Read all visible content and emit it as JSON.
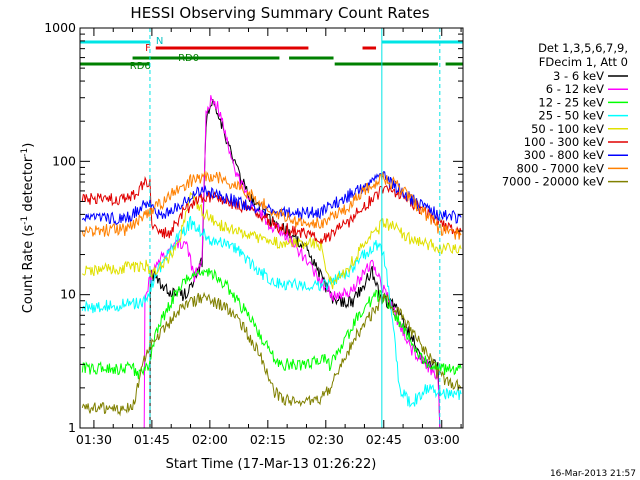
{
  "chart_data": {
    "type": "line",
    "title": "HESSI Observing Summary Count Rates",
    "xlabel": "Start Time (17-Mar-13 01:26:22)",
    "ylabel": "Count Rate (s^-1 detector^-1)",
    "ylabel_main": "Count Rate (s",
    "ylabel_sup1": "-1",
    "ylabel_mid": " detector",
    "ylabel_sup2": "-1",
    "ylabel_end": ")",
    "y_scale": "log",
    "ylim": [
      1,
      1000
    ],
    "xlim_min": [
      86.4,
      185.5
    ],
    "x_ticks": [
      {
        "t": 90,
        "label": "01:30"
      },
      {
        "t": 105,
        "label": "01:45"
      },
      {
        "t": 120,
        "label": "02:00"
      },
      {
        "t": 135,
        "label": "02:15"
      },
      {
        "t": 150,
        "label": "02:30"
      },
      {
        "t": 165,
        "label": "02:45"
      },
      {
        "t": 180,
        "label": "03:00"
      }
    ],
    "y_ticks": [
      {
        "v": 1,
        "label": "1"
      },
      {
        "v": 10,
        "label": "10"
      },
      {
        "v": 100,
        "label": "100"
      },
      {
        "v": 1000,
        "label": "1000"
      }
    ],
    "legend_header": [
      "Det 1,3,5,6,7,9,",
      "FDecim 1, Att 0"
    ],
    "legend_placement": "right",
    "timestamp": "16-Mar-2013 21:57",
    "flag_labels": {
      "N": "N",
      "F": "F",
      "RD0": "RD0",
      "RD6": "RD6"
    },
    "flags": [
      {
        "key": "N",
        "color": "#00e5e5",
        "segments": [
          [
            86.4,
            104.5
          ],
          [
            164.5,
            185.5
          ]
        ]
      },
      {
        "key": "F",
        "color": "#e00000",
        "segments": [
          [
            106,
            145.5
          ],
          [
            159.5,
            163
          ]
        ]
      },
      {
        "key": "RD0",
        "color": "#008000",
        "segments": [
          [
            100,
            138
          ],
          [
            140.5,
            152
          ]
        ]
      },
      {
        "key": "RD6",
        "color": "#008000",
        "segments": [
          [
            86.4,
            104.5
          ],
          [
            152.3,
            179
          ],
          [
            181,
            185.5
          ]
        ]
      }
    ],
    "markers": [
      {
        "t": 104.5,
        "style": "dashed"
      },
      {
        "t": 164.5,
        "style": "solid"
      },
      {
        "t": 179.5,
        "style": "dashed"
      }
    ],
    "series": [
      {
        "name": "3 - 6 keV",
        "color": "#000000",
        "points": [
          [
            87,
            1.0
          ],
          [
            104.5,
            1.0
          ],
          [
            104.6,
            15
          ],
          [
            108,
            11
          ],
          [
            113,
            10
          ],
          [
            116,
            12
          ],
          [
            118,
            18
          ],
          [
            119,
            200
          ],
          [
            120.5,
            280
          ],
          [
            122,
            250
          ],
          [
            124,
            150
          ],
          [
            127,
            90
          ],
          [
            130,
            55
          ],
          [
            135,
            38
          ],
          [
            140,
            30
          ],
          [
            145,
            22
          ],
          [
            148,
            15
          ],
          [
            152,
            9
          ],
          [
            157,
            9
          ],
          [
            162,
            15
          ],
          [
            164,
            10
          ],
          [
            168,
            8
          ],
          [
            172,
            5
          ],
          [
            176,
            3
          ],
          [
            179,
            3
          ],
          [
            179.5,
            1.0
          ],
          [
            185,
            1.0
          ]
        ]
      },
      {
        "name": "6 - 12 keV",
        "color": "#ff00ff",
        "points": [
          [
            87,
            1.0
          ],
          [
            103,
            1.0
          ],
          [
            103.2,
            10
          ],
          [
            105,
            14
          ],
          [
            108,
            20
          ],
          [
            112,
            25
          ],
          [
            114,
            24
          ],
          [
            116,
            13
          ],
          [
            118,
            20
          ],
          [
            119,
            220
          ],
          [
            120.5,
            320
          ],
          [
            122,
            260
          ],
          [
            124,
            160
          ],
          [
            127,
            80
          ],
          [
            130,
            52
          ],
          [
            135,
            35
          ],
          [
            140,
            28
          ],
          [
            145,
            18
          ],
          [
            148,
            13
          ],
          [
            152,
            10
          ],
          [
            157,
            11
          ],
          [
            162,
            18
          ],
          [
            164,
            13
          ],
          [
            168,
            7
          ],
          [
            172,
            4
          ],
          [
            176,
            3
          ],
          [
            179,
            2.5
          ],
          [
            179.5,
            1.0
          ],
          [
            185,
            1.0
          ]
        ]
      },
      {
        "name": "12 - 25 keV",
        "color": "#00ff00",
        "points": [
          [
            87,
            2.8
          ],
          [
            100,
            2.8
          ],
          [
            102,
            2.5
          ],
          [
            104,
            3
          ],
          [
            106,
            5
          ],
          [
            109,
            8
          ],
          [
            112,
            11
          ],
          [
            115,
            14
          ],
          [
            118,
            15
          ],
          [
            121,
            14
          ],
          [
            124,
            12
          ],
          [
            127,
            9
          ],
          [
            130,
            7
          ],
          [
            133,
            5
          ],
          [
            136,
            3.5
          ],
          [
            139,
            3
          ],
          [
            142,
            3
          ],
          [
            146,
            3
          ],
          [
            149,
            3.5
          ],
          [
            151,
            3
          ],
          [
            154,
            4
          ],
          [
            157,
            6
          ],
          [
            160,
            8
          ],
          [
            163,
            10
          ],
          [
            165,
            9.5
          ],
          [
            168,
            7
          ],
          [
            171,
            5
          ],
          [
            174,
            3.5
          ],
          [
            177,
            3
          ],
          [
            179,
            2.8
          ],
          [
            185,
            2.8
          ]
        ]
      },
      {
        "name": "25 - 50 keV",
        "color": "#00ffff",
        "points": [
          [
            87,
            8
          ],
          [
            100,
            8.5
          ],
          [
            103,
            9
          ],
          [
            105,
            12
          ],
          [
            108,
            18
          ],
          [
            112,
            28
          ],
          [
            115,
            35
          ],
          [
            118,
            30
          ],
          [
            121,
            25
          ],
          [
            124,
            25
          ],
          [
            127,
            22
          ],
          [
            130,
            18
          ],
          [
            133,
            15
          ],
          [
            136,
            13
          ],
          [
            139,
            12
          ],
          [
            142,
            12
          ],
          [
            146,
            12
          ],
          [
            149,
            12
          ],
          [
            151,
            12
          ],
          [
            154,
            14
          ],
          [
            157,
            16
          ],
          [
            160,
            20
          ],
          [
            163,
            24
          ],
          [
            165,
            20
          ],
          [
            167,
            8
          ],
          [
            169,
            2
          ],
          [
            172,
            1.5
          ],
          [
            176,
            2
          ],
          [
            179,
            1.8
          ],
          [
            185,
            1.8
          ]
        ]
      },
      {
        "name": "50 - 100 keV",
        "color": "#e0e000",
        "points": [
          [
            87,
            15
          ],
          [
            100,
            16
          ],
          [
            103,
            17
          ],
          [
            105,
            15
          ],
          [
            108,
            17
          ],
          [
            112,
            25
          ],
          [
            115,
            55
          ],
          [
            117,
            45
          ],
          [
            119,
            40
          ],
          [
            121,
            35
          ],
          [
            124,
            32
          ],
          [
            127,
            30
          ],
          [
            130,
            28
          ],
          [
            133,
            26
          ],
          [
            136,
            25
          ],
          [
            139,
            25
          ],
          [
            143,
            24
          ],
          [
            146,
            24
          ],
          [
            149,
            24
          ],
          [
            150,
            14
          ],
          [
            152,
            12
          ],
          [
            154,
            14
          ],
          [
            157,
            18
          ],
          [
            160,
            24
          ],
          [
            163,
            30
          ],
          [
            165,
            35
          ],
          [
            168,
            32
          ],
          [
            171,
            27
          ],
          [
            174,
            25
          ],
          [
            177,
            24
          ],
          [
            179,
            22
          ],
          [
            185,
            22
          ]
        ]
      },
      {
        "name": "100 - 300 keV",
        "color": "#e00000",
        "points": [
          [
            87,
            52
          ],
          [
            99,
            52
          ],
          [
            101,
            58
          ],
          [
            103,
            70
          ],
          [
            104.5,
            72
          ],
          [
            105,
            35
          ],
          [
            107,
            28
          ],
          [
            110,
            30
          ],
          [
            113,
            42
          ],
          [
            116,
            50
          ],
          [
            118,
            55
          ],
          [
            120,
            55
          ],
          [
            123,
            52
          ],
          [
            126,
            48
          ],
          [
            130,
            44
          ],
          [
            134,
            38
          ],
          [
            138,
            32
          ],
          [
            142,
            30
          ],
          [
            146,
            28
          ],
          [
            149,
            27
          ],
          [
            151,
            28
          ],
          [
            154,
            32
          ],
          [
            157,
            38
          ],
          [
            160,
            46
          ],
          [
            163,
            56
          ],
          [
            165,
            62
          ],
          [
            168,
            58
          ],
          [
            171,
            52
          ],
          [
            174,
            45
          ],
          [
            177,
            40
          ],
          [
            179,
            35
          ],
          [
            185,
            30
          ]
        ]
      },
      {
        "name": "300 - 800 keV",
        "color": "#0000ff",
        "points": [
          [
            87,
            37
          ],
          [
            99,
            38
          ],
          [
            101,
            42
          ],
          [
            103,
            47
          ],
          [
            104.5,
            50
          ],
          [
            106,
            42
          ],
          [
            108,
            40
          ],
          [
            110,
            42
          ],
          [
            112,
            48
          ],
          [
            115,
            55
          ],
          [
            118,
            60
          ],
          [
            121,
            58
          ],
          [
            124,
            54
          ],
          [
            127,
            50
          ],
          [
            130,
            47
          ],
          [
            133,
            45
          ],
          [
            136,
            43
          ],
          [
            139,
            42
          ],
          [
            142,
            41
          ],
          [
            146,
            41
          ],
          [
            149,
            42
          ],
          [
            151,
            46
          ],
          [
            154,
            52
          ],
          [
            157,
            58
          ],
          [
            160,
            66
          ],
          [
            163,
            72
          ],
          [
            165,
            76
          ],
          [
            168,
            66
          ],
          [
            171,
            56
          ],
          [
            174,
            48
          ],
          [
            177,
            43
          ],
          [
            179,
            40
          ],
          [
            185,
            38
          ]
        ]
      },
      {
        "name": "800 - 7000 keV",
        "color": "#ff8000",
        "points": [
          [
            87,
            30
          ],
          [
            99,
            31
          ],
          [
            101,
            35
          ],
          [
            103,
            40
          ],
          [
            104.5,
            42
          ],
          [
            106,
            45
          ],
          [
            108,
            50
          ],
          [
            110,
            57
          ],
          [
            112,
            64
          ],
          [
            115,
            72
          ],
          [
            118,
            77
          ],
          [
            120,
            78
          ],
          [
            123,
            75
          ],
          [
            126,
            68
          ],
          [
            130,
            58
          ],
          [
            134,
            48
          ],
          [
            138,
            40
          ],
          [
            142,
            36
          ],
          [
            146,
            35
          ],
          [
            149,
            35
          ],
          [
            151,
            37
          ],
          [
            154,
            42
          ],
          [
            157,
            50
          ],
          [
            160,
            60
          ],
          [
            163,
            70
          ],
          [
            165,
            76
          ],
          [
            168,
            68
          ],
          [
            171,
            56
          ],
          [
            174,
            45
          ],
          [
            177,
            37
          ],
          [
            179,
            32
          ],
          [
            185,
            28
          ]
        ]
      },
      {
        "name": "7000 - 20000 keV",
        "color": "#808000",
        "points": [
          [
            87,
            1.4
          ],
          [
            100,
            1.4
          ],
          [
            102,
            2.5
          ],
          [
            104,
            4
          ],
          [
            106,
            4.5
          ],
          [
            109,
            6
          ],
          [
            112,
            7.5
          ],
          [
            115,
            9
          ],
          [
            118,
            9.5
          ],
          [
            121,
            9
          ],
          [
            124,
            8
          ],
          [
            127,
            6.5
          ],
          [
            130,
            5
          ],
          [
            133,
            3.5
          ],
          [
            136,
            2
          ],
          [
            139,
            1.6
          ],
          [
            142,
            1.6
          ],
          [
            146,
            1.6
          ],
          [
            149,
            1.7
          ],
          [
            151,
            2
          ],
          [
            154,
            3
          ],
          [
            157,
            4.5
          ],
          [
            160,
            6
          ],
          [
            163,
            8
          ],
          [
            165,
            9.5
          ],
          [
            168,
            8
          ],
          [
            171,
            6
          ],
          [
            174,
            4.5
          ],
          [
            177,
            3.5
          ],
          [
            179,
            2.5
          ],
          [
            185,
            2
          ]
        ]
      }
    ]
  }
}
